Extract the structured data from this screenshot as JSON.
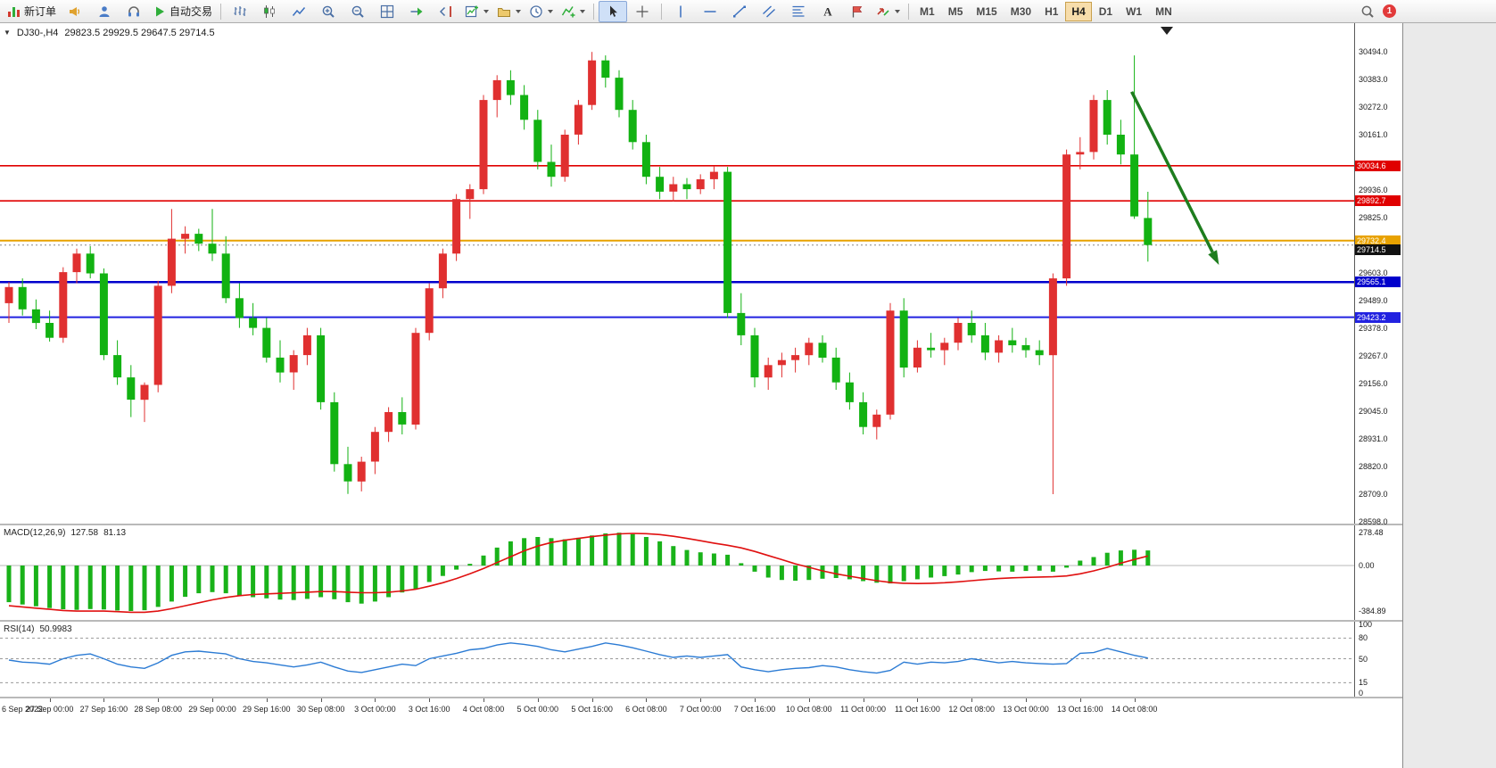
{
  "toolbar": {
    "items": [
      {
        "name": "new-order-button",
        "icon": "new-order",
        "label": "新订单"
      },
      {
        "name": "announcements-button",
        "icon": "horn"
      },
      {
        "name": "community-button",
        "icon": "person"
      },
      {
        "name": "support-button",
        "icon": "headset"
      },
      {
        "name": "auto-trading-button",
        "icon": "play",
        "label": "自动交易"
      },
      {
        "type": "sep"
      },
      {
        "name": "bar-chart-button",
        "icon": "bar-chart"
      },
      {
        "name": "candlestick-chart-button",
        "icon": "candle-chart"
      },
      {
        "name": "line-chart-button",
        "icon": "line-chart"
      },
      {
        "name": "zoom-in-button",
        "icon": "zoom-in"
      },
      {
        "name": "zoom-out-button",
        "icon": "zoom-out"
      },
      {
        "name": "tile-windows-button",
        "icon": "tile"
      },
      {
        "name": "auto-scroll-button",
        "icon": "auto-scroll"
      },
      {
        "name": "chart-shift-button",
        "icon": "chart-shift"
      },
      {
        "name": "new-chart-button",
        "icon": "new-chart",
        "dropdown": true
      },
      {
        "name": "profiles-button",
        "icon": "profiles",
        "dropdown": true
      },
      {
        "name": "periods-button",
        "icon": "clock",
        "dropdown": true
      },
      {
        "name": "indicators-button",
        "icon": "indicators",
        "dropdown": true
      },
      {
        "type": "sep"
      },
      {
        "name": "cursor-button",
        "icon": "cursor",
        "active": true
      },
      {
        "name": "crosshair-button",
        "icon": "crosshair"
      },
      {
        "type": "sep"
      },
      {
        "name": "vertical-line-button",
        "icon": "vline"
      },
      {
        "name": "horizontal-line-button",
        "icon": "hline"
      },
      {
        "name": "trendline-button",
        "icon": "trendline"
      },
      {
        "name": "channel-button",
        "icon": "channel"
      },
      {
        "name": "fibonacci-button",
        "icon": "fibonacci"
      },
      {
        "name": "text-tool-button",
        "icon": "text"
      },
      {
        "name": "label-tool-button",
        "icon": "label"
      },
      {
        "name": "arrows-tool-button",
        "icon": "arrows",
        "dropdown": true
      },
      {
        "type": "sep"
      },
      {
        "type": "timeframe",
        "name": "timeframe-button-m1",
        "label": "M1"
      },
      {
        "type": "timeframe",
        "name": "timeframe-button-m5",
        "label": "M5"
      },
      {
        "type": "timeframe",
        "name": "timeframe-button-m15",
        "label": "M15"
      },
      {
        "type": "timeframe",
        "name": "timeframe-button-m30",
        "label": "M30"
      },
      {
        "type": "timeframe",
        "name": "timeframe-button-h1",
        "label": "H1"
      },
      {
        "type": "timeframe",
        "name": "timeframe-button-h4",
        "label": "H4",
        "active": true
      },
      {
        "type": "timeframe",
        "name": "timeframe-button-d1",
        "label": "D1"
      },
      {
        "type": "timeframe",
        "name": "timeframe-button-w1",
        "label": "W1"
      },
      {
        "type": "timeframe",
        "name": "timeframe-button-mn",
        "label": "MN"
      },
      {
        "type": "spacer"
      },
      {
        "name": "search-button",
        "icon": "search"
      },
      {
        "type": "badge",
        "name": "notifications-badge",
        "label": "1"
      }
    ]
  },
  "chart": {
    "symbol": "DJ30-,H4",
    "ohlc_text": "29823.5 29929.5 29647.5 29714.5",
    "one_click_marker": "▼"
  },
  "chart_data": {
    "type": "candlestick",
    "symbol": "DJ30-,H4",
    "timeframe": "H4",
    "ohlc": {
      "open": 29823.5,
      "high": 29929.5,
      "low": 29647.5,
      "close": 29714.5
    },
    "ylim": [
      28590,
      30610
    ],
    "colors": {
      "up": "#e03030",
      "down": "#12b212"
    },
    "candles": [
      [
        29480,
        29565,
        29400,
        29545
      ],
      [
        29545,
        29580,
        29430,
        29455
      ],
      [
        29455,
        29495,
        29375,
        29400
      ],
      [
        29400,
        29450,
        29325,
        29340
      ],
      [
        29340,
        29625,
        29320,
        29605
      ],
      [
        29605,
        29700,
        29560,
        29680
      ],
      [
        29680,
        29710,
        29580,
        29600
      ],
      [
        29600,
        29620,
        29250,
        29270
      ],
      [
        29270,
        29330,
        29150,
        29180
      ],
      [
        29180,
        29230,
        29020,
        29090
      ],
      [
        29090,
        29160,
        29000,
        29150
      ],
      [
        29150,
        29570,
        29120,
        29550
      ],
      [
        29550,
        29860,
        29520,
        29740
      ],
      [
        29740,
        29790,
        29680,
        29760
      ],
      [
        29760,
        29780,
        29690,
        29720
      ],
      [
        29720,
        29860,
        29650,
        29680
      ],
      [
        29680,
        29750,
        29480,
        29500
      ],
      [
        29500,
        29560,
        29380,
        29420
      ],
      [
        29420,
        29480,
        29350,
        29380
      ],
      [
        29380,
        29420,
        29240,
        29260
      ],
      [
        29260,
        29330,
        29160,
        29200
      ],
      [
        29200,
        29290,
        29130,
        29270
      ],
      [
        29270,
        29380,
        29230,
        29350
      ],
      [
        29350,
        29380,
        29050,
        29080
      ],
      [
        29080,
        29120,
        28800,
        28830
      ],
      [
        28830,
        28900,
        28710,
        28760
      ],
      [
        28760,
        28860,
        28720,
        28840
      ],
      [
        28840,
        28980,
        28790,
        28960
      ],
      [
        28960,
        29060,
        28920,
        29040
      ],
      [
        29040,
        29100,
        28950,
        28990
      ],
      [
        28990,
        29380,
        28970,
        29360
      ],
      [
        29360,
        29560,
        29330,
        29540
      ],
      [
        29540,
        29700,
        29500,
        29680
      ],
      [
        29680,
        29920,
        29650,
        29900
      ],
      [
        29900,
        29960,
        29820,
        29940
      ],
      [
        29940,
        30320,
        29920,
        30300
      ],
      [
        30300,
        30400,
        30230,
        30380
      ],
      [
        30380,
        30420,
        30280,
        30320
      ],
      [
        30320,
        30360,
        30180,
        30220
      ],
      [
        30220,
        30260,
        30020,
        30050
      ],
      [
        30050,
        30120,
        29950,
        29990
      ],
      [
        29990,
        30180,
        29970,
        30160
      ],
      [
        30160,
        30300,
        30120,
        30280
      ],
      [
        30280,
        30494,
        30260,
        30460
      ],
      [
        30460,
        30480,
        30350,
        30390
      ],
      [
        30390,
        30420,
        30230,
        30260
      ],
      [
        30260,
        30300,
        30100,
        30130
      ],
      [
        30130,
        30160,
        29960,
        29990
      ],
      [
        29990,
        30030,
        29900,
        29930
      ],
      [
        29930,
        29990,
        29890,
        29960
      ],
      [
        29960,
        29985,
        29900,
        29940
      ],
      [
        29940,
        30000,
        29920,
        29980
      ],
      [
        29980,
        30034,
        29940,
        30010
      ],
      [
        30010,
        30030,
        29420,
        29440
      ],
      [
        29440,
        29520,
        29310,
        29350
      ],
      [
        29350,
        29380,
        29140,
        29180
      ],
      [
        29180,
        29260,
        29130,
        29230
      ],
      [
        29230,
        29280,
        29180,
        29250
      ],
      [
        29250,
        29300,
        29200,
        29270
      ],
      [
        29270,
        29340,
        29230,
        29320
      ],
      [
        29320,
        29350,
        29240,
        29260
      ],
      [
        29260,
        29300,
        29130,
        29160
      ],
      [
        29160,
        29200,
        29050,
        29080
      ],
      [
        29080,
        29120,
        28950,
        28980
      ],
      [
        28980,
        29050,
        28930,
        29030
      ],
      [
        29030,
        29480,
        29010,
        29450
      ],
      [
        29450,
        29500,
        29180,
        29220
      ],
      [
        29220,
        29330,
        29200,
        29300
      ],
      [
        29300,
        29360,
        29260,
        29290
      ],
      [
        29290,
        29340,
        29230,
        29320
      ],
      [
        29320,
        29420,
        29290,
        29400
      ],
      [
        29400,
        29450,
        29320,
        29350
      ],
      [
        29350,
        29400,
        29250,
        29280
      ],
      [
        29280,
        29350,
        29240,
        29330
      ],
      [
        29330,
        29380,
        29280,
        29310
      ],
      [
        29310,
        29340,
        29260,
        29290
      ],
      [
        29290,
        29330,
        29230,
        29270
      ],
      [
        29270,
        29600,
        28709,
        29580
      ],
      [
        29580,
        30100,
        29550,
        30080
      ],
      [
        30080,
        30150,
        30020,
        30090
      ],
      [
        30090,
        30320,
        30060,
        30300
      ],
      [
        30300,
        30340,
        30120,
        30160
      ],
      [
        30160,
        30220,
        30040,
        30080
      ],
      [
        30080,
        30480,
        29820,
        29830
      ],
      [
        29823.5,
        29929.5,
        29647.5,
        29714.5
      ]
    ],
    "x_first_label_index": 3,
    "candles_per_label": 4,
    "x_labels": [
      "6 Sep 2022",
      "27 Sep 00:00",
      "27 Sep 16:00",
      "28 Sep 08:00",
      "29 Sep 00:00",
      "29 Sep 16:00",
      "30 Sep 08:00",
      "3 Oct 00:00",
      "3 Oct 16:00",
      "4 Oct 08:00",
      "5 Oct 00:00",
      "5 Oct 16:00",
      "6 Oct 08:00",
      "7 Oct 00:00",
      "7 Oct 16:00",
      "10 Oct 08:00",
      "11 Oct 00:00",
      "11 Oct 16:00",
      "12 Oct 08:00",
      "13 Oct 00:00",
      "13 Oct 16:00",
      "14 Oct 08:00"
    ],
    "price_ticks": [
      "30494.0",
      "30383.0",
      "30272.0",
      "30161.0",
      "29936.0",
      "29825.0",
      "29603.0",
      "29489.0",
      "29378.0",
      "29267.0",
      "29156.0",
      "29045.0",
      "28931.0",
      "28820.0",
      "28709.0",
      "28598.0"
    ],
    "price_badges": [
      {
        "label": "30034.6",
        "price": 30034.6,
        "color": "#e00000"
      },
      {
        "label": "29892.7",
        "price": 29892.7,
        "color": "#e00000"
      },
      {
        "label": "29732.4",
        "price": 29732.4,
        "color": "#e8a200"
      },
      {
        "label": "29714.5",
        "price": 29714.5,
        "color": "#111111",
        "offset": 5
      },
      {
        "label": "29565.1",
        "price": 29565.1,
        "color": "#0000cc"
      },
      {
        "label": "29423.2",
        "price": 29423.2,
        "color": "#2222e0"
      }
    ],
    "horizontal_lines": [
      {
        "price": 30034.6,
        "color": "#e00000",
        "width": 1.6
      },
      {
        "price": 29892.7,
        "color": "#e00000",
        "width": 1.6
      },
      {
        "price": 29732.4,
        "color": "#e8a200",
        "width": 2
      },
      {
        "price": 29565.1,
        "color": "#0000cc",
        "width": 2.5
      },
      {
        "price": 29423.2,
        "color": "#2222e0",
        "width": 2
      }
    ],
    "bid_price": 29714.5,
    "arrow_annotation": {
      "from_candle": 82.8,
      "from_price": 30333,
      "to_candle": 89,
      "to_price": 29660,
      "color": "#1e7d1e"
    },
    "indicators": {
      "macd": {
        "label": "MACD(12,26,9)",
        "values": [
          "127.58",
          "81.13"
        ],
        "axis_ticks": [
          "278.48",
          "0.00",
          "-384.89"
        ],
        "ylim": [
          -460,
          340
        ],
        "hist_color": "#19b219",
        "signal_color": "#e01010",
        "histogram": [
          -310,
          -330,
          -345,
          -360,
          -370,
          -375,
          -368,
          -372,
          -380,
          -384.89,
          -378,
          -350,
          -305,
          -265,
          -235,
          -225,
          -235,
          -255,
          -268,
          -278,
          -288,
          -292,
          -282,
          -268,
          -285,
          -310,
          -322,
          -305,
          -268,
          -228,
          -198,
          -140,
          -88,
          -35,
          15,
          85,
          152,
          205,
          232,
          242,
          232,
          222,
          235,
          255,
          272,
          278.48,
          265,
          242,
          205,
          165,
          132,
          112,
          102,
          92,
          20,
          -52,
          -102,
          -122,
          -128,
          -122,
          -112,
          -106,
          -116,
          -132,
          -146,
          -152,
          -132,
          -116,
          -102,
          -90,
          -76,
          -56,
          -46,
          -50,
          -52,
          -46,
          -44,
          -52,
          -18,
          42,
          72,
          108,
          128,
          134,
          127.58
        ],
        "signal": [
          -340,
          -350,
          -360,
          -370,
          -380,
          -385,
          -385,
          -385,
          -390,
          -395,
          -395,
          -385,
          -365,
          -340,
          -315,
          -290,
          -270,
          -255,
          -245,
          -240,
          -235,
          -230,
          -225,
          -220,
          -220,
          -225,
          -230,
          -230,
          -225,
          -215,
          -200,
          -175,
          -145,
          -110,
          -70,
          -25,
          25,
          75,
          125,
          165,
          195,
          215,
          230,
          245,
          258,
          268,
          272,
          270,
          262,
          248,
          230,
          210,
          190,
          172,
          150,
          120,
          85,
          50,
          15,
          -15,
          -45,
          -70,
          -90,
          -110,
          -128,
          -142,
          -150,
          -152,
          -150,
          -145,
          -138,
          -128,
          -118,
          -110,
          -104,
          -100,
          -97,
          -95,
          -88,
          -70,
          -45,
          -15,
          20,
          52,
          81.13
        ]
      },
      "rsi": {
        "label": "RSI(14)",
        "value": "50.9983",
        "axis_ticks": [
          "100",
          "80",
          "50",
          "15",
          "0"
        ],
        "levels": [
          80,
          50,
          15
        ],
        "ylim": [
          -5.3,
          104
        ],
        "line_color": "#2b7bd4",
        "values": [
          48,
          45,
          44,
          42,
          50,
          55,
          57,
          50,
          42,
          38,
          36,
          44,
          55,
          60,
          61,
          59,
          57,
          50,
          46,
          44,
          41,
          38,
          41,
          45,
          38,
          32,
          30,
          34,
          38,
          42,
          40,
          50,
          54,
          58,
          63,
          65,
          70,
          73,
          71,
          68,
          63,
          60,
          64,
          68,
          73,
          70,
          66,
          61,
          56,
          52,
          54,
          52,
          54,
          56,
          38,
          34,
          31,
          34,
          36,
          37,
          40,
          38,
          34,
          31,
          29,
          33,
          45,
          42,
          45,
          44,
          46,
          50,
          47,
          44,
          46,
          44,
          43,
          42,
          43,
          58,
          59,
          65,
          60,
          55,
          50.9983
        ]
      }
    }
  }
}
